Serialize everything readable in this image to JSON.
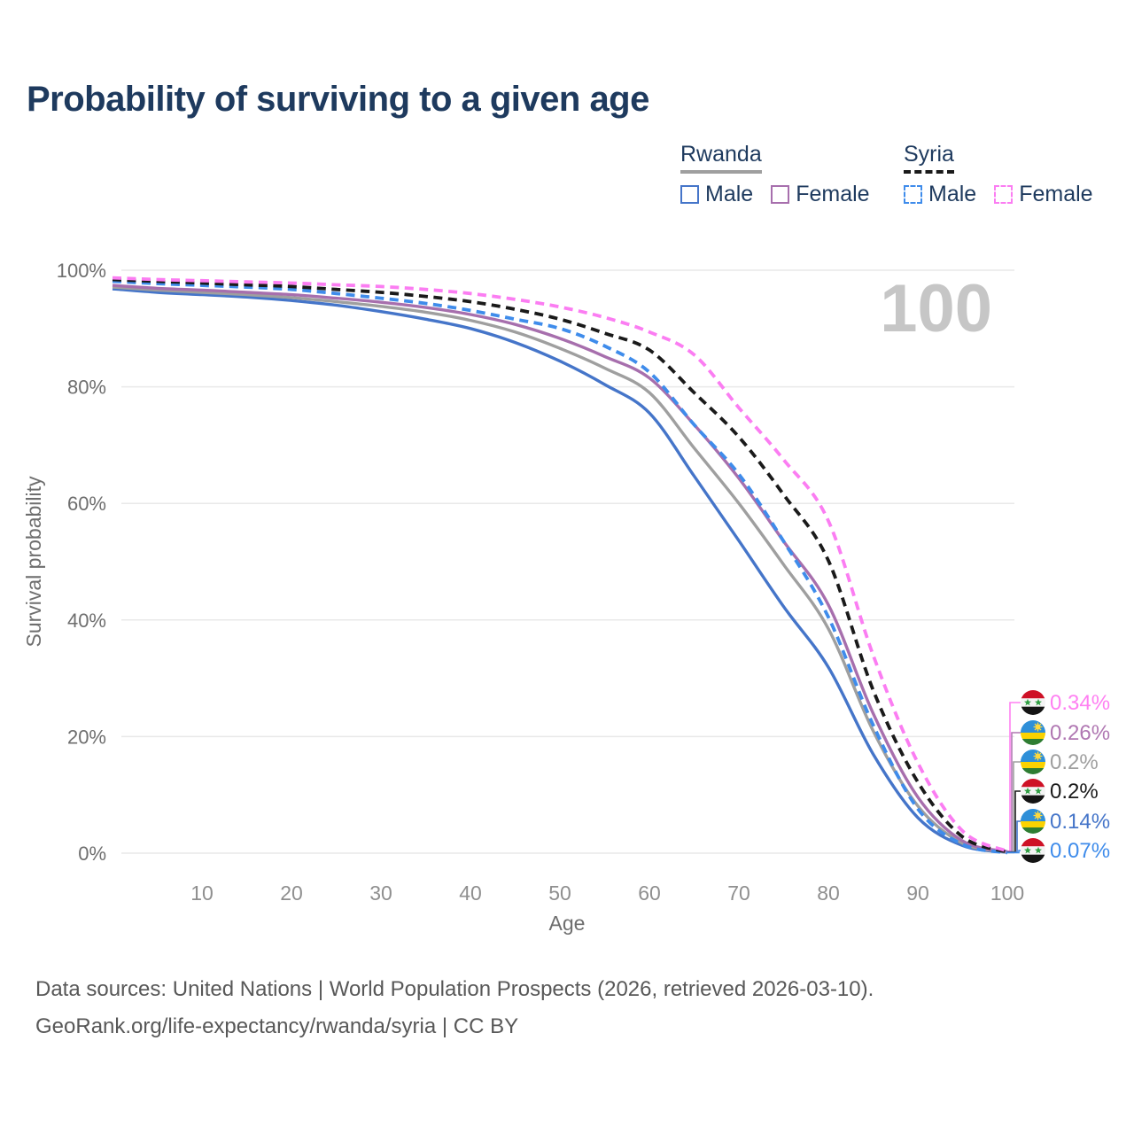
{
  "title": "Probability of surviving to a given age",
  "watermark": "100",
  "legend": {
    "groups": [
      {
        "label": "Rwanda",
        "line_style": "solid",
        "line_color": "#9f9f9f",
        "items": [
          {
            "label": "Male",
            "color": "#4575c9",
            "dashed": false
          },
          {
            "label": "Female",
            "color": "#a76fad",
            "dashed": false
          }
        ]
      },
      {
        "label": "Syria",
        "line_style": "dashed",
        "line_color": "#1a1a1a",
        "items": [
          {
            "label": "Male",
            "color": "#3f8ceb",
            "dashed": true
          },
          {
            "label": "Female",
            "color": "#fb7df2",
            "dashed": true
          }
        ]
      }
    ]
  },
  "chart_data": {
    "type": "line",
    "title": "Probability of surviving to a given age",
    "xlabel": "Age",
    "ylabel": "Survival probability",
    "xlim": [
      0,
      100
    ],
    "ylim": [
      0,
      100
    ],
    "grid": "horizontal",
    "legend_position": "top-right",
    "xticks": [
      10,
      20,
      30,
      40,
      50,
      60,
      70,
      80,
      90,
      100
    ],
    "ytick_values": [
      0,
      20,
      40,
      60,
      80,
      100
    ],
    "ytick_labels": [
      "0%",
      "20%",
      "40%",
      "60%",
      "80%",
      "100%"
    ],
    "x": [
      0,
      5,
      10,
      15,
      20,
      25,
      30,
      35,
      40,
      45,
      50,
      55,
      60,
      65,
      70,
      75,
      80,
      85,
      90,
      95,
      100
    ],
    "series": [
      {
        "id": "rwanda-male",
        "name": "Rwanda Male",
        "country": "Rwanda",
        "sex": "Male",
        "color": "#4575c9",
        "dashed": false,
        "values": [
          96.8,
          96.2,
          95.8,
          95.4,
          94.8,
          94.0,
          92.9,
          91.6,
          90.0,
          87.6,
          84.4,
          80.4,
          75.5,
          64.7,
          53.6,
          42.3,
          31.9,
          17.0,
          6.1,
          1.3,
          0.14
        ]
      },
      {
        "id": "rwanda-all",
        "name": "Rwanda",
        "country": "Rwanda",
        "sex": "Both",
        "color": "#9f9f9f",
        "dashed": false,
        "values": [
          97.1,
          96.6,
          96.2,
          95.8,
          95.3,
          94.6,
          93.8,
          92.8,
          91.4,
          89.4,
          86.6,
          83.2,
          79.0,
          69.5,
          60.0,
          49.5,
          38.5,
          21.0,
          8.1,
          1.7,
          0.2
        ]
      },
      {
        "id": "rwanda-female",
        "name": "Rwanda Female",
        "country": "Rwanda",
        "sex": "Female",
        "color": "#a76fad",
        "dashed": false,
        "values": [
          97.4,
          96.9,
          96.6,
          96.2,
          95.8,
          95.2,
          94.5,
          93.6,
          92.4,
          90.7,
          88.3,
          85.2,
          81.5,
          73.5,
          64.3,
          53.5,
          42.6,
          24.0,
          9.6,
          2.1,
          0.26
        ]
      },
      {
        "id": "syria-male",
        "name": "Syria Male",
        "country": "Syria",
        "sex": "Male",
        "color": "#3f8ceb",
        "dashed": true,
        "values": [
          98.1,
          97.7,
          97.4,
          97.1,
          96.7,
          96.0,
          95.2,
          94.3,
          93.1,
          91.6,
          90.0,
          87.0,
          82.5,
          73.5,
          65.0,
          53.5,
          40.5,
          22.0,
          7.6,
          1.5,
          0.07
        ]
      },
      {
        "id": "syria-all",
        "name": "Syria",
        "country": "Syria",
        "sex": "Both",
        "color": "#1a1a1a",
        "dashed": true,
        "values": [
          98.4,
          98.1,
          97.8,
          97.5,
          97.2,
          96.7,
          96.2,
          95.5,
          94.6,
          93.3,
          91.6,
          89.2,
          86.3,
          79.0,
          71.4,
          61.5,
          50.2,
          28.0,
          12.2,
          2.8,
          0.2
        ]
      },
      {
        "id": "syria-female",
        "name": "Syria Female",
        "country": "Syria",
        "sex": "Female",
        "color": "#fb7df2",
        "dashed": true,
        "values": [
          98.7,
          98.4,
          98.2,
          98.0,
          97.8,
          97.5,
          97.2,
          96.7,
          96.0,
          95.0,
          93.7,
          91.9,
          89.4,
          85.5,
          76.4,
          67.5,
          57.0,
          34.0,
          15.5,
          3.8,
          0.34
        ]
      }
    ],
    "end_labels": [
      {
        "series_id": "syria-female",
        "text": "0.34%",
        "color": "#ff80f2",
        "flag": "syria"
      },
      {
        "series_id": "rwanda-female",
        "text": "0.26%",
        "color": "#b077b2",
        "flag": "rwanda"
      },
      {
        "series_id": "rwanda-all",
        "text": "0.2%",
        "color": "#9f9f9f",
        "flag": "rwanda"
      },
      {
        "series_id": "syria-all",
        "text": "0.2%",
        "color": "#1a1a1a",
        "flag": "syria"
      },
      {
        "series_id": "rwanda-male",
        "text": "0.14%",
        "color": "#4575c9",
        "flag": "rwanda"
      },
      {
        "series_id": "syria-male",
        "text": "0.07%",
        "color": "#3f8ceb",
        "flag": "syria"
      }
    ],
    "flag_colors": {
      "syria": {
        "red": "#ce1126",
        "white": "#f4f4f4",
        "black": "#141414",
        "star_green": "#2f9e41"
      },
      "rwanda": {
        "blue": "#2e8fd8",
        "yellow": "#fad201",
        "green": "#2e7d32",
        "sun": "#ffd83d"
      }
    }
  },
  "footer": {
    "line1": "Data sources: United Nations | World Population Prospects (2026, retrieved 2026-03-10).",
    "line2": "GeoRank.org/life-expectancy/rwanda/syria | CC BY"
  }
}
